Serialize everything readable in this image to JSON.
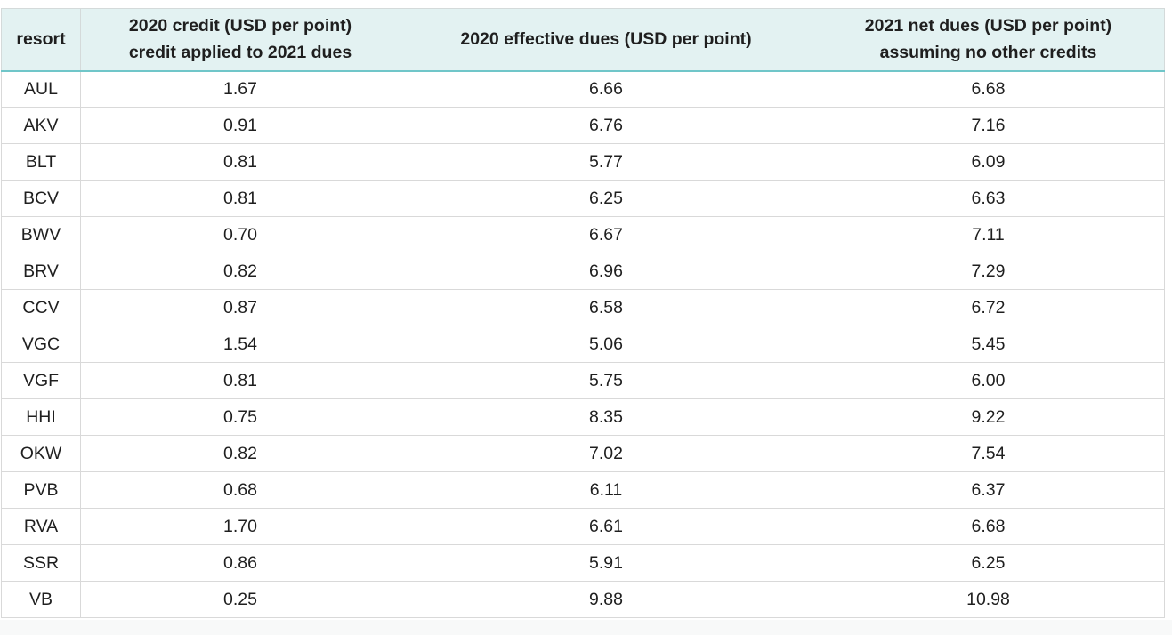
{
  "table": {
    "headers": [
      {
        "lines": [
          "resort"
        ]
      },
      {
        "lines": [
          "2020 credit (USD per point)",
          "credit applied to 2021 dues"
        ]
      },
      {
        "lines": [
          "2020 effective dues (USD per point)"
        ]
      },
      {
        "lines": [
          "2021 net dues (USD per point)",
          "assuming no other credits"
        ]
      }
    ],
    "rows": [
      [
        "AUL",
        "1.67",
        "6.66",
        "6.68"
      ],
      [
        "AKV",
        "0.91",
        "6.76",
        "7.16"
      ],
      [
        "BLT",
        "0.81",
        "5.77",
        "6.09"
      ],
      [
        "BCV",
        "0.81",
        "6.25",
        "6.63"
      ],
      [
        "BWV",
        "0.70",
        "6.67",
        "7.11"
      ],
      [
        "BRV",
        "0.82",
        "6.96",
        "7.29"
      ],
      [
        "CCV",
        "0.87",
        "6.58",
        "6.72"
      ],
      [
        "VGC",
        "1.54",
        "5.06",
        "5.45"
      ],
      [
        "VGF",
        "0.81",
        "5.75",
        "6.00"
      ],
      [
        "HHI",
        "0.75",
        "8.35",
        "9.22"
      ],
      [
        "OKW",
        "0.82",
        "7.02",
        "7.54"
      ],
      [
        "PVB",
        "0.68",
        "6.11",
        "6.37"
      ],
      [
        "RVA",
        "1.70",
        "6.61",
        "6.68"
      ],
      [
        "SSR",
        "0.86",
        "5.91",
        "6.25"
      ],
      [
        "VB",
        "0.25",
        "9.88",
        "10.98"
      ]
    ]
  },
  "colors": {
    "header_background": "#e3f2f2",
    "header_underline": "#70c6c9",
    "grid_line": "#d9d9d9",
    "text": "#1f1f1f"
  }
}
